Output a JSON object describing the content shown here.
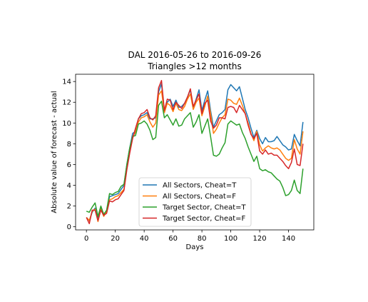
{
  "chart_data": {
    "type": "line",
    "title": "DAL 2016-05-26 to 2016-09-26",
    "subtitle": "Triangles >12 months",
    "xlabel": "Days",
    "ylabel": "Absolute value of forecast - actual",
    "xlim": [
      -7.5,
      157.5
    ],
    "ylim": [
      -0.3,
      14.7
    ],
    "xticks": [
      0,
      20,
      40,
      60,
      80,
      100,
      120,
      140
    ],
    "yticks": [
      0,
      2,
      4,
      6,
      8,
      10,
      12,
      14
    ],
    "grid": false,
    "legend_position": "lower-center",
    "series": [
      {
        "name": "All Sectors, Cheat=T",
        "color": "#1f77b4",
        "points": [
          [
            0,
            0.9
          ],
          [
            2,
            0.6
          ],
          [
            4,
            1.4
          ],
          [
            6,
            1.8
          ],
          [
            8,
            0.9
          ],
          [
            10,
            1.9
          ],
          [
            12,
            1.1
          ],
          [
            14,
            1.4
          ],
          [
            16,
            2.9
          ],
          [
            18,
            3.0
          ],
          [
            20,
            3.1
          ],
          [
            22,
            3.2
          ],
          [
            24,
            3.6
          ],
          [
            26,
            4.0
          ],
          [
            28,
            6.0
          ],
          [
            30,
            7.6
          ],
          [
            32,
            9.0
          ],
          [
            34,
            9.2
          ],
          [
            36,
            10.4
          ],
          [
            38,
            10.7
          ],
          [
            40,
            10.8
          ],
          [
            42,
            11.0
          ],
          [
            44,
            10.4
          ],
          [
            46,
            10.4
          ],
          [
            48,
            10.5
          ],
          [
            50,
            13.0
          ],
          [
            52,
            13.8
          ],
          [
            54,
            11.0
          ],
          [
            56,
            12.0
          ],
          [
            58,
            12.3
          ],
          [
            60,
            11.6
          ],
          [
            62,
            12.2
          ],
          [
            64,
            11.5
          ],
          [
            66,
            11.6
          ],
          [
            68,
            11.9
          ],
          [
            70,
            12.5
          ],
          [
            72,
            13.2
          ],
          [
            74,
            11.5
          ],
          [
            76,
            12.3
          ],
          [
            78,
            13.2
          ],
          [
            80,
            11.2
          ],
          [
            82,
            12.2
          ],
          [
            84,
            13.1
          ],
          [
            86,
            11.2
          ],
          [
            88,
            9.6
          ],
          [
            90,
            10.2
          ],
          [
            92,
            10.8
          ],
          [
            94,
            11.0
          ],
          [
            96,
            11.3
          ],
          [
            98,
            13.2
          ],
          [
            100,
            13.7
          ],
          [
            102,
            13.4
          ],
          [
            104,
            13.1
          ],
          [
            106,
            13.5
          ],
          [
            108,
            12.4
          ],
          [
            110,
            11.3
          ],
          [
            112,
            10.5
          ],
          [
            114,
            9.5
          ],
          [
            116,
            8.6
          ],
          [
            118,
            9.3
          ],
          [
            120,
            8.5
          ],
          [
            122,
            8.0
          ],
          [
            124,
            8.6
          ],
          [
            126,
            8.2
          ],
          [
            128,
            8.2
          ],
          [
            130,
            8.3
          ],
          [
            132,
            8.7
          ],
          [
            134,
            8.3
          ],
          [
            136,
            7.9
          ],
          [
            138,
            7.7
          ],
          [
            140,
            7.4
          ],
          [
            142,
            7.5
          ],
          [
            144,
            8.9
          ],
          [
            146,
            8.3
          ],
          [
            148,
            7.8
          ],
          [
            150,
            10.1
          ]
        ]
      },
      {
        "name": "All Sectors, Cheat=F",
        "color": "#ff7f0e",
        "points": [
          [
            0,
            0.9
          ],
          [
            2,
            0.6
          ],
          [
            4,
            1.5
          ],
          [
            6,
            1.7
          ],
          [
            8,
            0.5
          ],
          [
            10,
            1.7
          ],
          [
            12,
            1.0
          ],
          [
            14,
            1.5
          ],
          [
            16,
            2.6
          ],
          [
            18,
            2.7
          ],
          [
            20,
            2.9
          ],
          [
            22,
            3.0
          ],
          [
            24,
            3.3
          ],
          [
            26,
            3.6
          ],
          [
            28,
            5.7
          ],
          [
            30,
            7.3
          ],
          [
            32,
            8.7
          ],
          [
            34,
            9.1
          ],
          [
            36,
            10.1
          ],
          [
            38,
            10.5
          ],
          [
            40,
            10.6
          ],
          [
            42,
            10.8
          ],
          [
            44,
            10.1
          ],
          [
            46,
            9.6
          ],
          [
            48,
            10.0
          ],
          [
            50,
            12.7
          ],
          [
            52,
            13.1
          ],
          [
            54,
            11.0
          ],
          [
            56,
            11.9
          ],
          [
            58,
            11.7
          ],
          [
            60,
            11.1
          ],
          [
            62,
            11.9
          ],
          [
            64,
            11.3
          ],
          [
            66,
            11.2
          ],
          [
            68,
            11.6
          ],
          [
            70,
            12.3
          ],
          [
            72,
            12.8
          ],
          [
            74,
            11.3
          ],
          [
            76,
            12.0
          ],
          [
            78,
            12.4
          ],
          [
            80,
            10.7
          ],
          [
            82,
            11.6
          ],
          [
            84,
            12.6
          ],
          [
            86,
            10.9
          ],
          [
            88,
            9.0
          ],
          [
            90,
            9.4
          ],
          [
            92,
            10.0
          ],
          [
            94,
            10.5
          ],
          [
            96,
            10.8
          ],
          [
            98,
            12.3
          ],
          [
            100,
            12.2
          ],
          [
            102,
            11.9
          ],
          [
            104,
            11.8
          ],
          [
            106,
            12.4
          ],
          [
            108,
            11.7
          ],
          [
            110,
            10.9
          ],
          [
            112,
            10.0
          ],
          [
            114,
            9.0
          ],
          [
            116,
            8.3
          ],
          [
            118,
            9.2
          ],
          [
            120,
            7.9
          ],
          [
            122,
            7.3
          ],
          [
            124,
            7.6
          ],
          [
            126,
            7.8
          ],
          [
            128,
            7.6
          ],
          [
            130,
            7.5
          ],
          [
            132,
            7.6
          ],
          [
            134,
            7.4
          ],
          [
            136,
            7.0
          ],
          [
            138,
            6.6
          ],
          [
            140,
            6.4
          ],
          [
            142,
            6.6
          ],
          [
            144,
            8.4
          ],
          [
            146,
            7.5
          ],
          [
            148,
            7.0
          ],
          [
            150,
            9.2
          ]
        ]
      },
      {
        "name": "Target Sector, Cheat=T",
        "color": "#2ca02c",
        "points": [
          [
            0,
            1.5
          ],
          [
            2,
            1.4
          ],
          [
            4,
            1.9
          ],
          [
            6,
            2.3
          ],
          [
            8,
            1.0
          ],
          [
            10,
            2.0
          ],
          [
            12,
            1.2
          ],
          [
            14,
            1.6
          ],
          [
            16,
            3.2
          ],
          [
            18,
            3.1
          ],
          [
            20,
            3.3
          ],
          [
            22,
            3.4
          ],
          [
            24,
            3.9
          ],
          [
            26,
            4.1
          ],
          [
            28,
            6.0
          ],
          [
            30,
            7.6
          ],
          [
            32,
            8.7
          ],
          [
            34,
            8.8
          ],
          [
            36,
            9.9
          ],
          [
            38,
            10.0
          ],
          [
            40,
            10.2
          ],
          [
            42,
            9.9
          ],
          [
            44,
            9.3
          ],
          [
            46,
            8.4
          ],
          [
            48,
            8.6
          ],
          [
            50,
            11.7
          ],
          [
            52,
            12.1
          ],
          [
            54,
            10.5
          ],
          [
            56,
            10.8
          ],
          [
            58,
            10.3
          ],
          [
            60,
            9.8
          ],
          [
            62,
            10.4
          ],
          [
            64,
            9.7
          ],
          [
            66,
            9.8
          ],
          [
            68,
            10.4
          ],
          [
            70,
            10.7
          ],
          [
            72,
            11.0
          ],
          [
            74,
            9.6
          ],
          [
            76,
            10.1
          ],
          [
            78,
            10.8
          ],
          [
            80,
            9.0
          ],
          [
            82,
            9.7
          ],
          [
            84,
            10.4
          ],
          [
            86,
            8.7
          ],
          [
            88,
            6.9
          ],
          [
            90,
            6.8
          ],
          [
            92,
            7.0
          ],
          [
            94,
            7.6
          ],
          [
            96,
            8.1
          ],
          [
            98,
            9.9
          ],
          [
            100,
            10.2
          ],
          [
            102,
            10.0
          ],
          [
            104,
            9.8
          ],
          [
            106,
            9.9
          ],
          [
            108,
            9.1
          ],
          [
            110,
            8.5
          ],
          [
            112,
            7.7
          ],
          [
            114,
            7.0
          ],
          [
            116,
            6.3
          ],
          [
            118,
            6.8
          ],
          [
            120,
            5.6
          ],
          [
            122,
            5.4
          ],
          [
            124,
            5.5
          ],
          [
            126,
            5.3
          ],
          [
            128,
            5.2
          ],
          [
            130,
            4.9
          ],
          [
            132,
            4.6
          ],
          [
            134,
            4.4
          ],
          [
            136,
            3.8
          ],
          [
            138,
            3.0
          ],
          [
            140,
            3.1
          ],
          [
            142,
            3.5
          ],
          [
            144,
            4.5
          ],
          [
            146,
            3.5
          ],
          [
            148,
            3.2
          ],
          [
            150,
            5.6
          ]
        ]
      },
      {
        "name": "Target Sector, Cheat=F",
        "color": "#d62728",
        "points": [
          [
            0,
            0.9
          ],
          [
            2,
            0.3
          ],
          [
            4,
            1.6
          ],
          [
            6,
            1.6
          ],
          [
            8,
            0.6
          ],
          [
            10,
            1.6
          ],
          [
            12,
            1.1
          ],
          [
            14,
            1.3
          ],
          [
            16,
            2.5
          ],
          [
            18,
            2.4
          ],
          [
            20,
            2.6
          ],
          [
            22,
            2.7
          ],
          [
            24,
            3.1
          ],
          [
            26,
            3.5
          ],
          [
            28,
            5.5
          ],
          [
            30,
            7.1
          ],
          [
            32,
            8.5
          ],
          [
            34,
            9.5
          ],
          [
            36,
            10.4
          ],
          [
            38,
            10.9
          ],
          [
            40,
            11.0
          ],
          [
            42,
            11.3
          ],
          [
            44,
            10.5
          ],
          [
            46,
            10.3
          ],
          [
            48,
            10.7
          ],
          [
            50,
            13.4
          ],
          [
            52,
            14.1
          ],
          [
            54,
            11.2
          ],
          [
            56,
            12.3
          ],
          [
            58,
            12.2
          ],
          [
            60,
            11.3
          ],
          [
            62,
            12.0
          ],
          [
            64,
            11.7
          ],
          [
            66,
            11.4
          ],
          [
            68,
            11.9
          ],
          [
            70,
            12.5
          ],
          [
            72,
            13.3
          ],
          [
            74,
            11.6
          ],
          [
            76,
            12.2
          ],
          [
            78,
            12.8
          ],
          [
            80,
            10.9
          ],
          [
            82,
            11.9
          ],
          [
            84,
            12.2
          ],
          [
            86,
            10.2
          ],
          [
            88,
            9.5
          ],
          [
            90,
            9.8
          ],
          [
            92,
            10.5
          ],
          [
            94,
            10.5
          ],
          [
            96,
            10.4
          ],
          [
            98,
            11.5
          ],
          [
            100,
            11.6
          ],
          [
            102,
            11.5
          ],
          [
            104,
            11.0
          ],
          [
            106,
            11.7
          ],
          [
            108,
            11.3
          ],
          [
            110,
            10.9
          ],
          [
            112,
            9.8
          ],
          [
            114,
            8.9
          ],
          [
            116,
            8.5
          ],
          [
            118,
            9.0
          ],
          [
            120,
            7.3
          ],
          [
            122,
            7.0
          ],
          [
            124,
            7.4
          ],
          [
            126,
            7.0
          ],
          [
            128,
            7.1
          ],
          [
            130,
            6.9
          ],
          [
            132,
            6.9
          ],
          [
            134,
            6.6
          ],
          [
            136,
            6.3
          ],
          [
            138,
            5.9
          ],
          [
            140,
            5.6
          ],
          [
            142,
            6.2
          ],
          [
            144,
            7.5
          ],
          [
            146,
            6.0
          ],
          [
            148,
            5.9
          ],
          [
            150,
            8.0
          ]
        ]
      }
    ]
  }
}
